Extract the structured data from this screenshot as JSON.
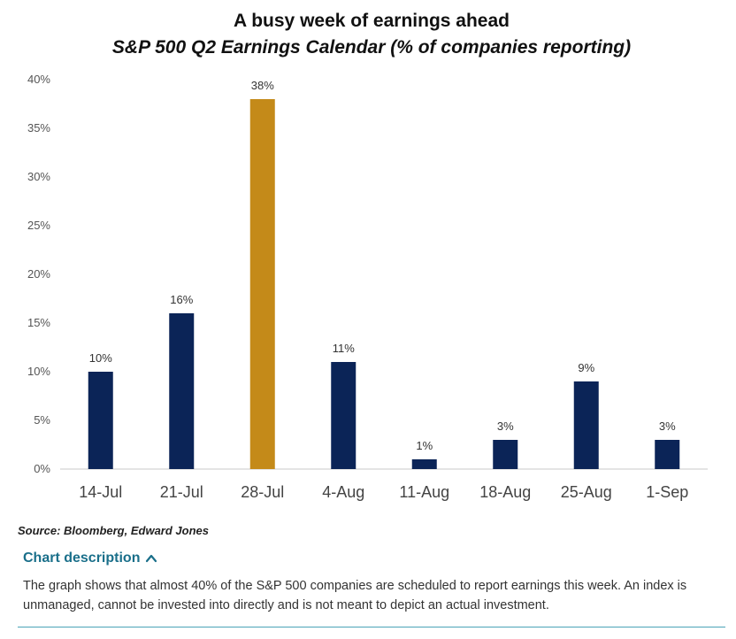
{
  "chart_data": {
    "type": "bar",
    "title": "A busy week of earnings ahead",
    "subtitle": "S&P 500 Q2 Earnings Calendar (% of companies reporting)",
    "categories": [
      "14-Jul",
      "21-Jul",
      "28-Jul",
      "4-Aug",
      "11-Aug",
      "18-Aug",
      "25-Aug",
      "1-Sep"
    ],
    "values": [
      10,
      16,
      38,
      11,
      1,
      3,
      9,
      3
    ],
    "data_labels": [
      "10%",
      "16%",
      "38%",
      "11%",
      "1%",
      "3%",
      "9%",
      "3%"
    ],
    "highlight_index": 2,
    "y_ticks": [
      0,
      5,
      10,
      15,
      20,
      25,
      30,
      35,
      40
    ],
    "y_tick_labels": [
      "0%",
      "5%",
      "10%",
      "15%",
      "20%",
      "25%",
      "30%",
      "35%",
      "40%"
    ],
    "ylim": [
      0,
      40
    ],
    "xlabel": "",
    "ylabel": "",
    "grid": false,
    "legend": "none"
  },
  "colors": {
    "bar": "#0b2457",
    "highlight": "#c48a19",
    "link": "#1a6f8a",
    "rule": "#4aa3b8"
  },
  "source": "Source: Bloomberg, Edward Jones",
  "description": {
    "toggle_label": "Chart description",
    "toggle_icon": "chevron-up-icon",
    "text": "The graph shows that almost 40% of the S&P 500 companies are scheduled to report earnings this week. An index is unmanaged, cannot be invested into directly and is not meant to depict an actual investment."
  }
}
